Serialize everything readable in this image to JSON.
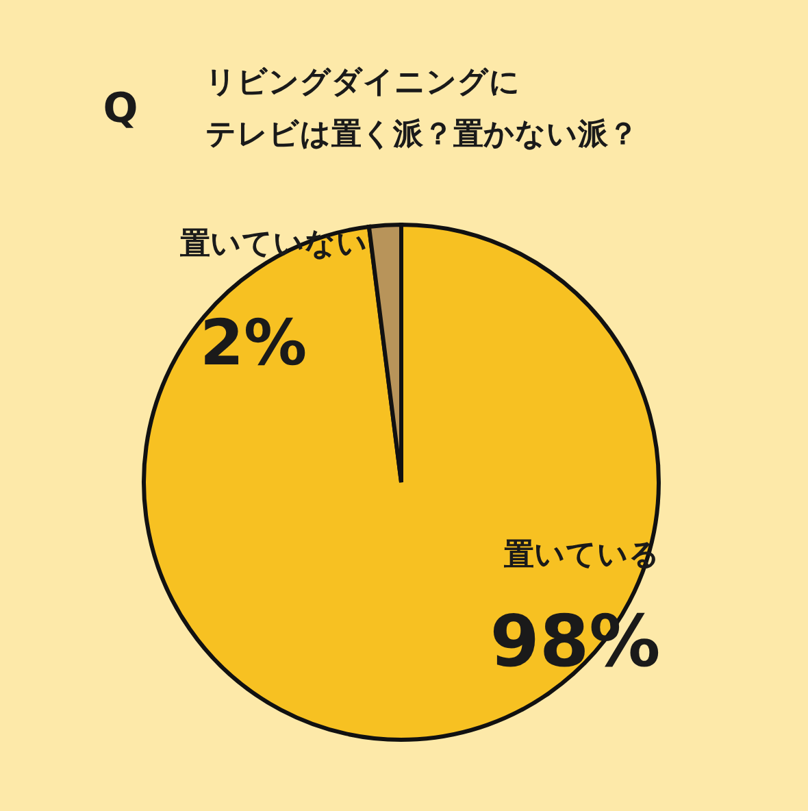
{
  "chart_data": {
    "type": "pie",
    "title": "リビングダイニングに",
    "subtitle": "テレビは置く派？置かない派？",
    "categories": [
      "置いている",
      "置いていない"
    ],
    "values": [
      98,
      2
    ],
    "colors": [
      "#f7c122",
      "#b8945a"
    ],
    "value_labels": [
      "98%",
      "2%"
    ],
    "annotations": [
      "Q"
    ]
  }
}
